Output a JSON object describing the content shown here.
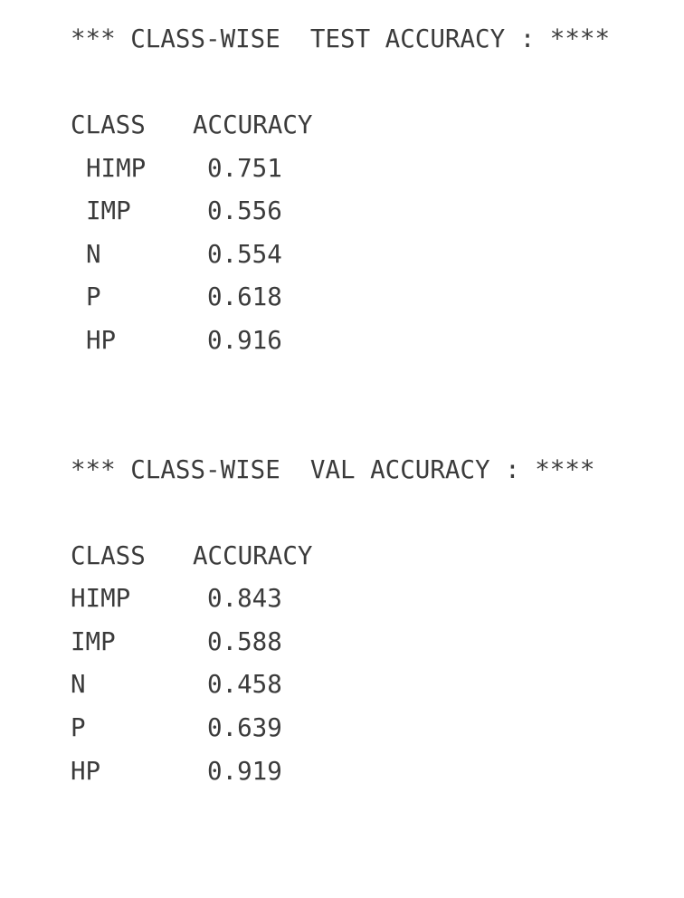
{
  "test": {
    "heading": "*** CLASS-WISE  TEST ACCURACY : ****",
    "col_class": "CLASS",
    "col_accuracy": "ACCURACY",
    "rows": [
      {
        "cls": "HIMP",
        "acc": "0.751"
      },
      {
        "cls": "IMP",
        "acc": "0.556"
      },
      {
        "cls": "N",
        "acc": "0.554"
      },
      {
        "cls": "P",
        "acc": "0.618"
      },
      {
        "cls": "HP",
        "acc": "0.916"
      }
    ]
  },
  "val": {
    "heading": "*** CLASS-WISE  VAL ACCURACY : ****",
    "col_class": "CLASS",
    "col_accuracy": "ACCURACY",
    "rows": [
      {
        "cls": "HIMP",
        "acc": "0.843"
      },
      {
        "cls": "IMP",
        "acc": "0.588"
      },
      {
        "cls": "N",
        "acc": "0.458"
      },
      {
        "cls": "P",
        "acc": "0.639"
      },
      {
        "cls": "HP",
        "acc": "0.919"
      }
    ]
  }
}
